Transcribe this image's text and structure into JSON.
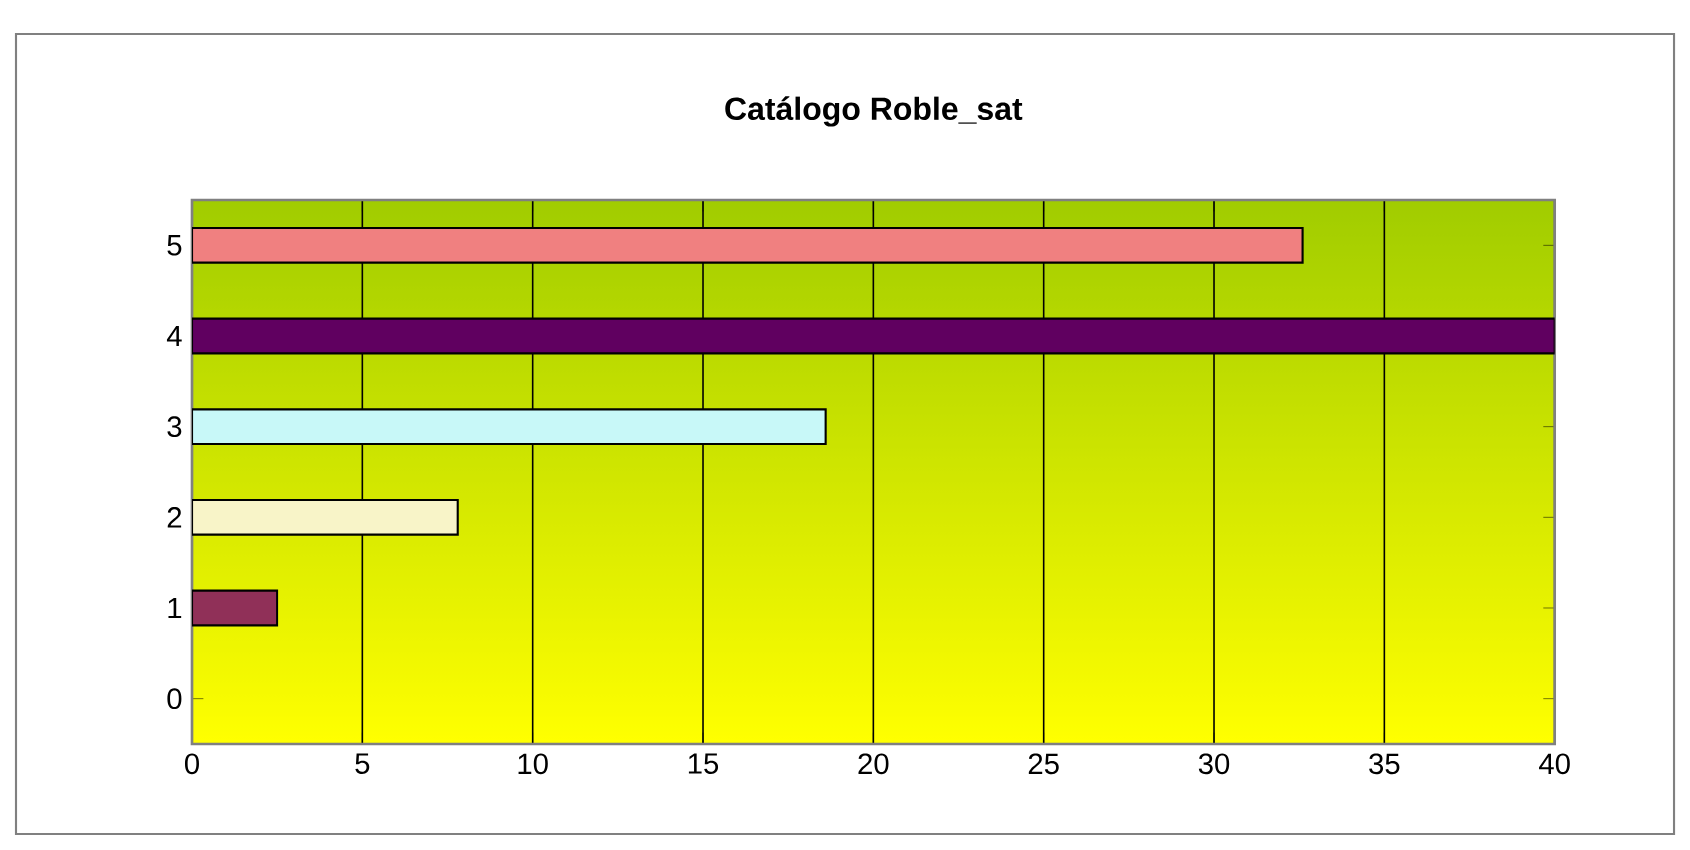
{
  "chart_data": {
    "type": "bar",
    "orientation": "horizontal",
    "title": "Catálogo Roble_sat",
    "categories": [
      "5",
      "4",
      "3",
      "2",
      "1",
      "0"
    ],
    "values": [
      32.6,
      40,
      18.6,
      7.8,
      2.5,
      null
    ],
    "colors": [
      "#f08080",
      "#600060",
      "#c8f8f8",
      "#f8f4c8",
      "#903058",
      null
    ],
    "xlim": [
      0,
      40
    ],
    "xticks": [
      0,
      5,
      10,
      15,
      20,
      25,
      30,
      35,
      40
    ],
    "grid": "x"
  }
}
